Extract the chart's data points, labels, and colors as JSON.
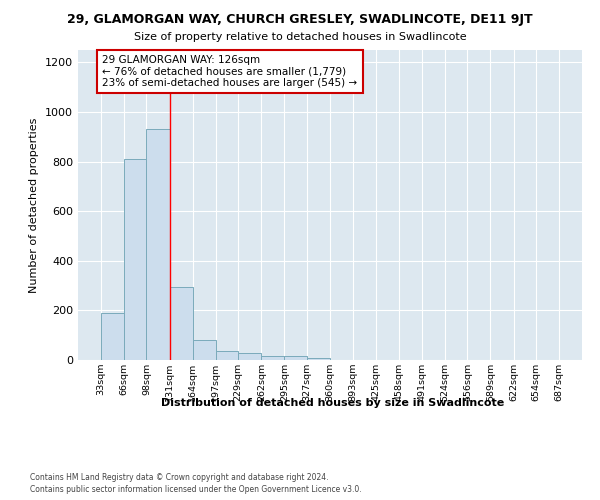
{
  "title_line1": "29, GLAMORGAN WAY, CHURCH GRESLEY, SWADLINCOTE, DE11 9JT",
  "title_line2": "Size of property relative to detached houses in Swadlincote",
  "xlabel": "Distribution of detached houses by size in Swadlincote",
  "ylabel": "Number of detached properties",
  "bin_edges": [
    33,
    66,
    98,
    131,
    164,
    197,
    229,
    262,
    295,
    327,
    360,
    393,
    425,
    458,
    491,
    524,
    556,
    589,
    622,
    654,
    687
  ],
  "bar_heights": [
    190,
    810,
    930,
    295,
    80,
    38,
    30,
    18,
    18,
    10,
    0,
    0,
    0,
    0,
    0,
    0,
    0,
    0,
    0,
    0
  ],
  "bar_color": "#ccdded",
  "bar_edge_color": "#7aaabb",
  "red_line_x": 131,
  "ylim": [
    0,
    1250
  ],
  "yticks": [
    0,
    200,
    400,
    600,
    800,
    1000,
    1200
  ],
  "annotation_title": "29 GLAMORGAN WAY: 126sqm",
  "annotation_line2": "← 76% of detached houses are smaller (1,779)",
  "annotation_line3": "23% of semi-detached houses are larger (545) →",
  "annotation_box_facecolor": "#ffffff",
  "annotation_box_edgecolor": "#cc0000",
  "plot_bg_color": "#dde8f0",
  "figure_bg_color": "#ffffff",
  "grid_color": "#ffffff",
  "footer_line1": "Contains HM Land Registry data © Crown copyright and database right 2024.",
  "footer_line2": "Contains public sector information licensed under the Open Government Licence v3.0."
}
